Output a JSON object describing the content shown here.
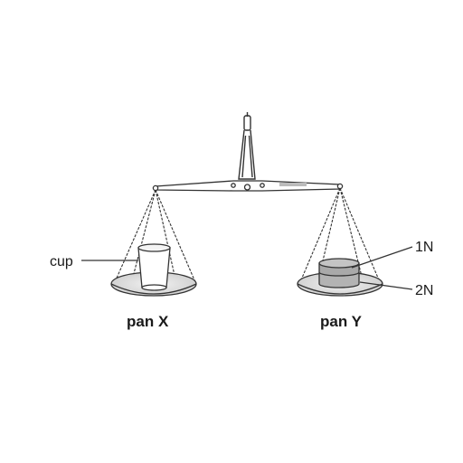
{
  "labels": {
    "cup": "cup",
    "weight_top": "1N",
    "weight_bottom": "2N",
    "pan_left": "pan X",
    "pan_right": "pan Y"
  },
  "colors": {
    "line": "#333333",
    "pan_fill": "#e6e6e6",
    "weight_fill": "#b3b3b3",
    "cup_fill": "#ffffff"
  }
}
